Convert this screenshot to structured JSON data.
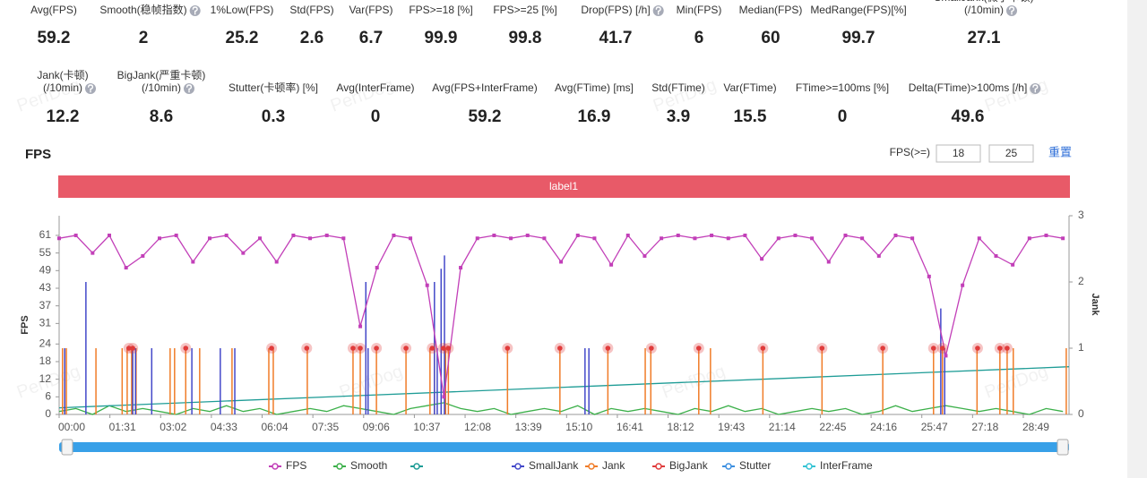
{
  "metrics": {
    "rows": [
      [
        {
          "label": [
            "Avg(FPS)"
          ],
          "value": "59.2"
        },
        {
          "label": [
            "Smooth(稳帧指数)"
          ],
          "value": "2",
          "help": true
        },
        {
          "label": [
            "1%Low(FPS)"
          ],
          "value": "25.2"
        },
        {
          "label": [
            "Std(FPS)"
          ],
          "value": "2.6"
        },
        {
          "label": [
            "Var(FPS)"
          ],
          "value": "6.7"
        },
        {
          "label": [
            "FPS>=18 [%]"
          ],
          "value": "99.9"
        },
        {
          "label": [
            "FPS>=25 [%]"
          ],
          "value": "99.8"
        },
        {
          "label": [
            "Drop(FPS) [/h]"
          ],
          "value": "41.7",
          "help": true
        },
        {
          "label": [
            "Min(FPS)"
          ],
          "value": "6"
        },
        {
          "label": [
            "Median(FPS)"
          ],
          "value": "60"
        },
        {
          "label": [
            "MedRange(FPS)[%]"
          ],
          "value": "99.7"
        },
        {
          "label": [
            "SmallJank(微小卡顿)",
            "(/10min)"
          ],
          "value": "27.1",
          "help": true
        }
      ],
      [
        {
          "label": [
            "Jank(卡顿)",
            "(/10min)"
          ],
          "value": "12.2",
          "help": true
        },
        {
          "label": [
            "BigJank(严重卡顿)",
            "(/10min)"
          ],
          "value": "8.6",
          "help": true
        },
        {
          "label": [
            "Stutter(卡顿率) [%]"
          ],
          "value": "0.3"
        },
        {
          "label": [
            "Avg(InterFrame)"
          ],
          "value": "0"
        },
        {
          "label": [
            "Avg(FPS+InterFrame)"
          ],
          "value": "59.2"
        },
        {
          "label": [
            "Avg(FTime) [ms]"
          ],
          "value": "16.9"
        },
        {
          "label": [
            "Std(FTime)"
          ],
          "value": "3.9"
        },
        {
          "label": [
            "Var(FTime)"
          ],
          "value": "15.5"
        },
        {
          "label": [
            "FTime>=100ms [%]"
          ],
          "value": "0"
        },
        {
          "label": [
            "Delta(FTime)>100ms [/h]"
          ],
          "value": "49.6",
          "help": true
        }
      ]
    ]
  },
  "watermark": "PerfDog",
  "chart_data": {
    "type": "line",
    "title": "FPS",
    "threshold_label": "FPS(>=)",
    "thresholds": [
      18,
      25
    ],
    "reset": "重置",
    "band_label": "label1",
    "y_label": "FPS",
    "y2_label": "Jank",
    "xlim": [
      0,
      1811
    ],
    "xticks": [
      {
        "value": 0,
        "label": "00:00"
      },
      {
        "value": 91,
        "label": "01:31"
      },
      {
        "value": 182,
        "label": "03:02"
      },
      {
        "value": 273,
        "label": "04:33"
      },
      {
        "value": 364,
        "label": "06:04"
      },
      {
        "value": 455,
        "label": "07:35"
      },
      {
        "value": 546,
        "label": "09:06"
      },
      {
        "value": 637,
        "label": "10:37"
      },
      {
        "value": 728,
        "label": "12:08"
      },
      {
        "value": 819,
        "label": "13:39"
      },
      {
        "value": 910,
        "label": "15:10"
      },
      {
        "value": 1001,
        "label": "16:41"
      },
      {
        "value": 1092,
        "label": "18:12"
      },
      {
        "value": 1183,
        "label": "19:43"
      },
      {
        "value": 1274,
        "label": "21:14"
      },
      {
        "value": 1365,
        "label": "22:45"
      },
      {
        "value": 1456,
        "label": "24:16"
      },
      {
        "value": 1547,
        "label": "25:47"
      },
      {
        "value": 1638,
        "label": "27:18"
      },
      {
        "value": 1729,
        "label": "28:49"
      }
    ],
    "ylim": [
      0,
      67.7
    ],
    "yticks": [
      0,
      6,
      12,
      18,
      24,
      31,
      37,
      43,
      49,
      55,
      61
    ],
    "y2lim": [
      0,
      3
    ],
    "y2ticks": [
      0,
      1,
      2,
      3
    ],
    "series": [
      {
        "name": "FPS",
        "type": "line",
        "color": "#c23fb8",
        "x": [
          0,
          30,
          60,
          90,
          120,
          150,
          180,
          210,
          240,
          270,
          300,
          330,
          360,
          390,
          420,
          450,
          480,
          510,
          540,
          570,
          600,
          630,
          660,
          690,
          720,
          750,
          780,
          810,
          840,
          870,
          900,
          930,
          960,
          990,
          1020,
          1050,
          1080,
          1110,
          1140,
          1170,
          1200,
          1230,
          1260,
          1290,
          1320,
          1350,
          1380,
          1410,
          1440,
          1470,
          1500,
          1530,
          1560,
          1590,
          1620,
          1650,
          1680,
          1710,
          1740,
          1770,
          1800
        ],
        "values": [
          60,
          61,
          55,
          61,
          50,
          54,
          60,
          61,
          52,
          60,
          61,
          55,
          60,
          52,
          61,
          60,
          61,
          60,
          30,
          50,
          61,
          60,
          44,
          6,
          50,
          60,
          61,
          60,
          61,
          60,
          52,
          61,
          60,
          51,
          61,
          54,
          60,
          61,
          60,
          61,
          60,
          61,
          53,
          60,
          61,
          60,
          52,
          61,
          60,
          54,
          61,
          60,
          47,
          20,
          44,
          60,
          54,
          51,
          60,
          61,
          60
        ]
      },
      {
        "name": "Smooth",
        "type": "line",
        "color": "#3cb04a",
        "x": [
          0,
          30,
          60,
          90,
          120,
          150,
          180,
          210,
          240,
          270,
          300,
          330,
          360,
          390,
          420,
          450,
          480,
          510,
          540,
          570,
          600,
          630,
          660,
          690,
          720,
          750,
          780,
          810,
          840,
          870,
          900,
          930,
          960,
          990,
          1020,
          1050,
          1080,
          1110,
          1140,
          1170,
          1200,
          1230,
          1260,
          1290,
          1320,
          1350,
          1380,
          1410,
          1440,
          1470,
          1500,
          1530,
          1560,
          1590,
          1620,
          1650,
          1680,
          1710,
          1740,
          1770,
          1800
        ],
        "values": [
          1,
          2,
          0,
          3,
          1,
          2,
          1,
          0,
          2,
          1,
          3,
          1,
          2,
          0,
          1,
          2,
          1,
          3,
          2,
          1,
          0,
          2,
          3,
          4,
          2,
          1,
          2,
          0,
          1,
          2,
          1,
          3,
          0,
          2,
          1,
          2,
          1,
          0,
          2,
          1,
          3,
          1,
          2,
          0,
          1,
          2,
          1,
          2,
          0,
          1,
          3,
          1,
          2,
          3,
          2,
          1,
          2,
          1,
          0,
          2,
          1
        ]
      },
      {
        "type": "line",
        "axis": "y2",
        "color": "#1e9c96",
        "x": [
          0,
          1811
        ],
        "values": [
          0.1,
          0.72
        ]
      },
      {
        "name": "SmallJank",
        "type": "spike",
        "axis": "y2",
        "color": "#4348c9",
        "x": [
          10,
          48,
          132,
          137,
          166,
          238,
          289,
          315,
          550,
          554,
          673,
          678,
          685,
          691,
          943,
          950,
          1581,
          1588
        ],
        "values": [
          1,
          2,
          1,
          1,
          1,
          1,
          1,
          1,
          2,
          1,
          2,
          1,
          2.2,
          2.4,
          1,
          1,
          1.6,
          1
        ]
      },
      {
        "name": "Jank",
        "type": "spike",
        "axis": "y2",
        "color": "#f07c28",
        "x": [
          6,
          13,
          66,
          113,
          122,
          130,
          138,
          199,
          207,
          227,
          252,
          310,
          376,
          384,
          445,
          527,
          540,
          569,
          622,
          665,
          673,
          693,
          698,
          804,
          898,
          984,
          1051,
          1061,
          1147,
          1168,
          1262,
          1368,
          1477,
          1568,
          1584,
          1646,
          1687,
          1700,
          1711,
          1806
        ],
        "values": [
          1,
          1,
          1,
          1,
          1,
          1,
          1,
          1,
          1,
          1,
          1,
          1,
          1,
          1,
          1,
          1,
          1,
          1,
          1,
          1,
          1,
          1,
          1,
          1,
          1,
          1,
          1,
          1,
          1,
          1,
          1,
          1,
          1,
          1,
          1,
          1,
          1,
          1,
          1,
          1
        ]
      },
      {
        "name": "BigJank",
        "type": "dots",
        "axis": "y2",
        "color": "#e03b3b",
        "x": [
          125,
          132,
          227,
          381,
          444,
          527,
          540,
          569,
          622,
          669,
          689,
          698,
          804,
          898,
          984,
          1062,
          1147,
          1262,
          1368,
          1477,
          1568,
          1584,
          1647,
          1687,
          1700
        ],
        "values": [
          1,
          1,
          1,
          1,
          1,
          1,
          1,
          1,
          1,
          1,
          1,
          1,
          1,
          1,
          1,
          1,
          1,
          1,
          1,
          1,
          1,
          1,
          1,
          1,
          1
        ]
      },
      {
        "name": "Stutter",
        "type": "line",
        "color": "#3c8fe0",
        "x": [],
        "values": []
      },
      {
        "name": "InterFrame",
        "type": "line",
        "color": "#34c3d4",
        "x": [],
        "values": []
      }
    ]
  }
}
